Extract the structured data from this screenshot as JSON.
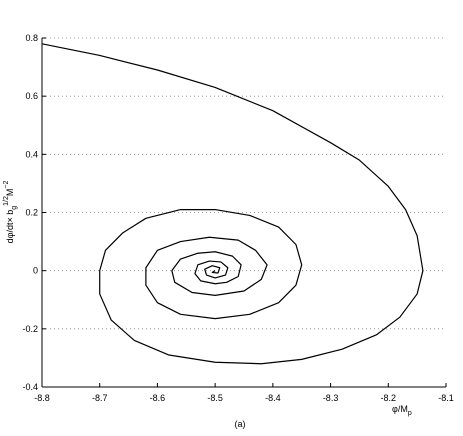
{
  "chart_data": {
    "type": "line",
    "xlabel": [
      "φ/M",
      "p"
    ],
    "ylabel": [
      "dφ/dt× b",
      "g",
      "1/2",
      "M",
      "−2"
    ],
    "caption": "(a)",
    "xlim": [
      -8.8,
      -8.1
    ],
    "xticks": [
      -8.8,
      -8.7,
      -8.6,
      -8.5,
      -8.4,
      -8.3,
      -8.2,
      -8.1
    ],
    "ylim": [
      -0.4,
      0.8
    ],
    "yticks": [
      -0.4,
      -0.2,
      0,
      0.2,
      0.4,
      0.6,
      0.8
    ],
    "grid": true,
    "x": [
      -8.8,
      -8.7,
      -8.6,
      -8.5,
      -8.4,
      -8.3,
      -8.25,
      -8.2,
      -8.17,
      -8.15,
      -8.14,
      -8.15,
      -8.18,
      -8.22,
      -8.28,
      -8.35,
      -8.42,
      -8.5,
      -8.58,
      -8.64,
      -8.68,
      -8.7,
      -8.7,
      -8.69,
      -8.66,
      -8.62,
      -8.56,
      -8.5,
      -8.44,
      -8.39,
      -8.36,
      -8.35,
      -8.36,
      -8.39,
      -8.44,
      -8.5,
      -8.56,
      -8.6,
      -8.62,
      -8.62,
      -8.6,
      -8.56,
      -8.51,
      -8.46,
      -8.43,
      -8.41,
      -8.42,
      -8.45,
      -8.5,
      -8.54,
      -8.57,
      -8.575,
      -8.56,
      -8.53,
      -8.5,
      -8.47,
      -8.455,
      -8.46,
      -8.48,
      -8.5,
      -8.525,
      -8.535,
      -8.53,
      -8.51,
      -8.49,
      -8.478,
      -8.482,
      -8.5,
      -8.515,
      -8.518,
      -8.505,
      -8.492,
      -8.495,
      -8.505,
      -8.5
    ],
    "series": [
      {
        "color": "#000000",
        "values": [
          0.78,
          0.74,
          0.69,
          0.63,
          0.55,
          0.44,
          0.38,
          0.29,
          0.21,
          0.12,
          0.0,
          -0.08,
          -0.16,
          -0.22,
          -0.27,
          -0.305,
          -0.32,
          -0.315,
          -0.29,
          -0.24,
          -0.17,
          -0.08,
          0.0,
          0.07,
          0.13,
          0.18,
          0.21,
          0.21,
          0.19,
          0.15,
          0.09,
          0.02,
          -0.05,
          -0.11,
          -0.15,
          -0.165,
          -0.15,
          -0.11,
          -0.05,
          0.01,
          0.07,
          0.1,
          0.115,
          0.105,
          0.07,
          0.02,
          -0.03,
          -0.07,
          -0.085,
          -0.075,
          -0.04,
          0.0,
          0.04,
          0.06,
          0.065,
          0.05,
          0.02,
          -0.02,
          -0.04,
          -0.045,
          -0.035,
          -0.01,
          0.02,
          0.033,
          0.03,
          0.01,
          -0.015,
          -0.025,
          -0.015,
          0.005,
          0.017,
          0.01,
          -0.008,
          -0.006,
          0.0
        ]
      }
    ]
  }
}
